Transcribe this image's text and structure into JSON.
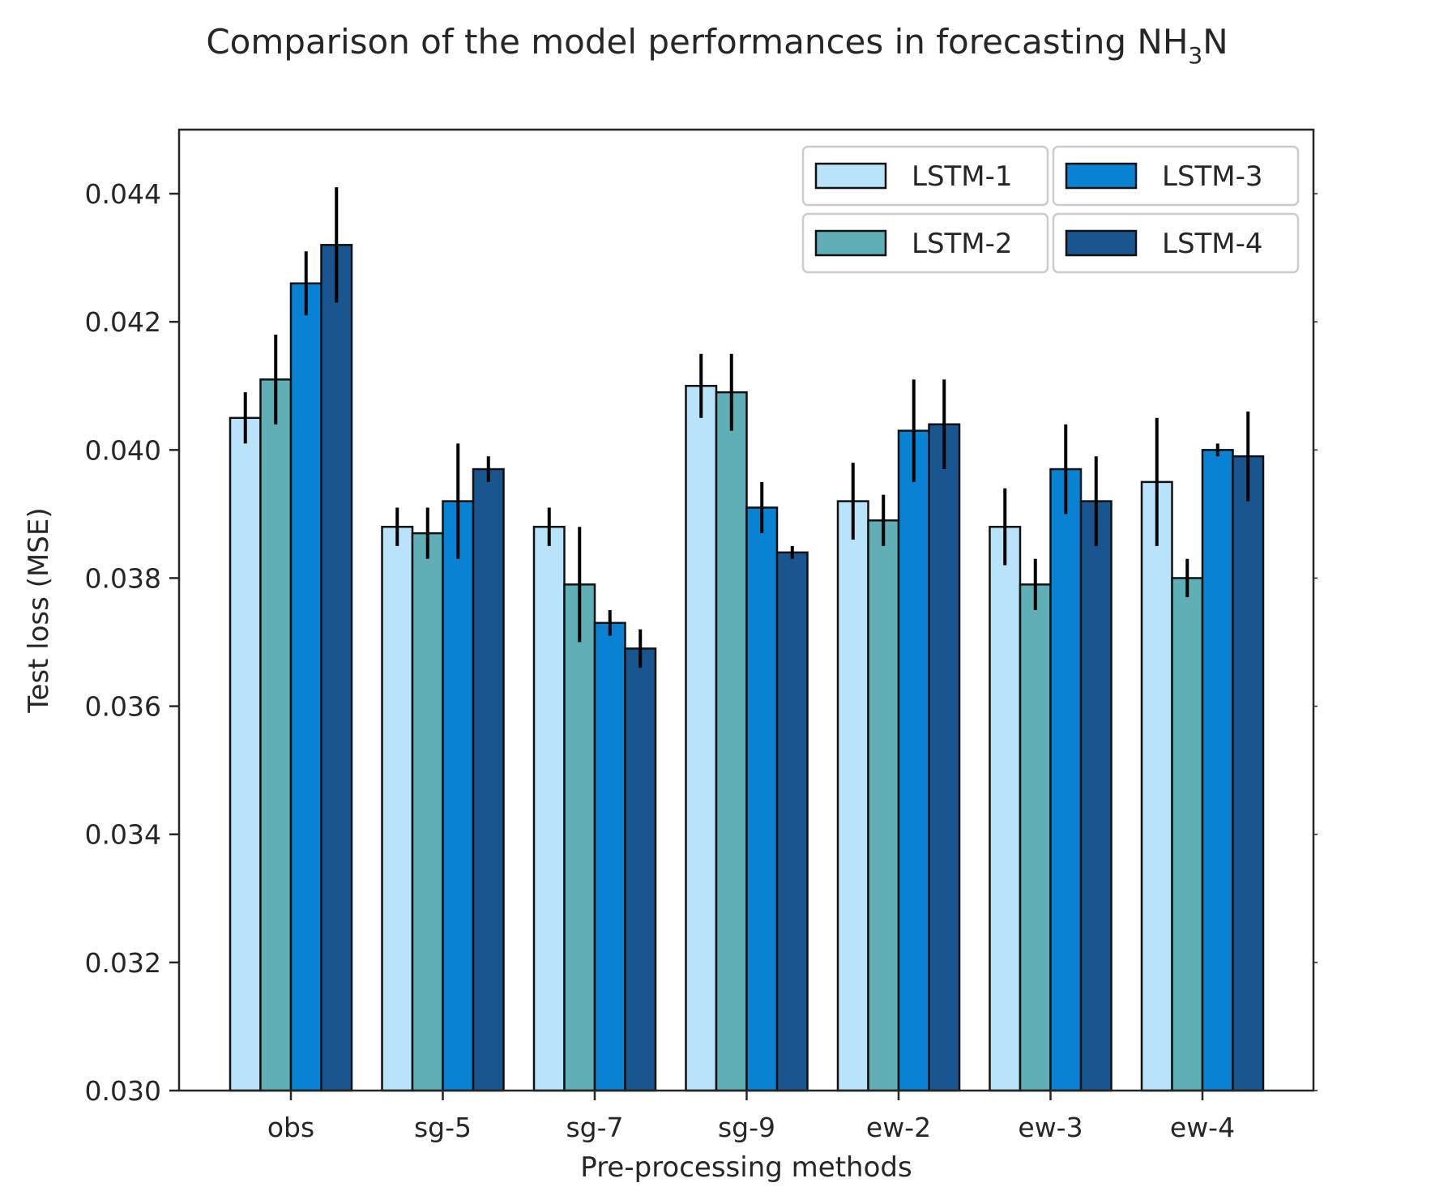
{
  "chart_data": {
    "type": "bar",
    "title": "Comparison of the model performances in forecasting NH",
    "title_subscript": "3",
    "title_suffix": "N",
    "xlabel": "Pre-processing methods",
    "ylabel": "Test loss (MSE)",
    "ylim": [
      0.03,
      0.045
    ],
    "yticks": [
      "0.030",
      "0.032",
      "0.034",
      "0.036",
      "0.038",
      "0.040",
      "0.042",
      "0.044"
    ],
    "categories": [
      "obs",
      "sg-5",
      "sg-7",
      "sg-9",
      "ew-2",
      "ew-3",
      "ew-4"
    ],
    "grid": false,
    "legend_position": "top-right",
    "series": [
      {
        "name": "LSTM-1",
        "color": "#b9e2fb",
        "values": [
          0.0405,
          0.0388,
          0.0388,
          0.041,
          0.0392,
          0.0388,
          0.0395
        ],
        "errors": [
          0.0004,
          0.0003,
          0.0003,
          0.0005,
          0.0006,
          0.0006,
          0.001
        ]
      },
      {
        "name": "LSTM-2",
        "color": "#60afb7",
        "values": [
          0.0411,
          0.0387,
          0.0379,
          0.0409,
          0.0389,
          0.0379,
          0.038
        ],
        "errors": [
          0.0007,
          0.0004,
          0.0009,
          0.0006,
          0.0004,
          0.0004,
          0.0003
        ]
      },
      {
        "name": "LSTM-3",
        "color": "#0982d4",
        "values": [
          0.0426,
          0.0392,
          0.0373,
          0.0391,
          0.0403,
          0.0397,
          0.04
        ],
        "errors": [
          0.0005,
          0.0009,
          0.0002,
          0.0004,
          0.0008,
          0.0007,
          0.0001
        ]
      },
      {
        "name": "LSTM-4",
        "color": "#19568f",
        "values": [
          0.0432,
          0.0397,
          0.0369,
          0.0384,
          0.0404,
          0.0392,
          0.0399
        ],
        "errors": [
          0.0009,
          0.0002,
          0.0003,
          0.0001,
          0.0007,
          0.0007,
          0.0007
        ]
      }
    ]
  }
}
